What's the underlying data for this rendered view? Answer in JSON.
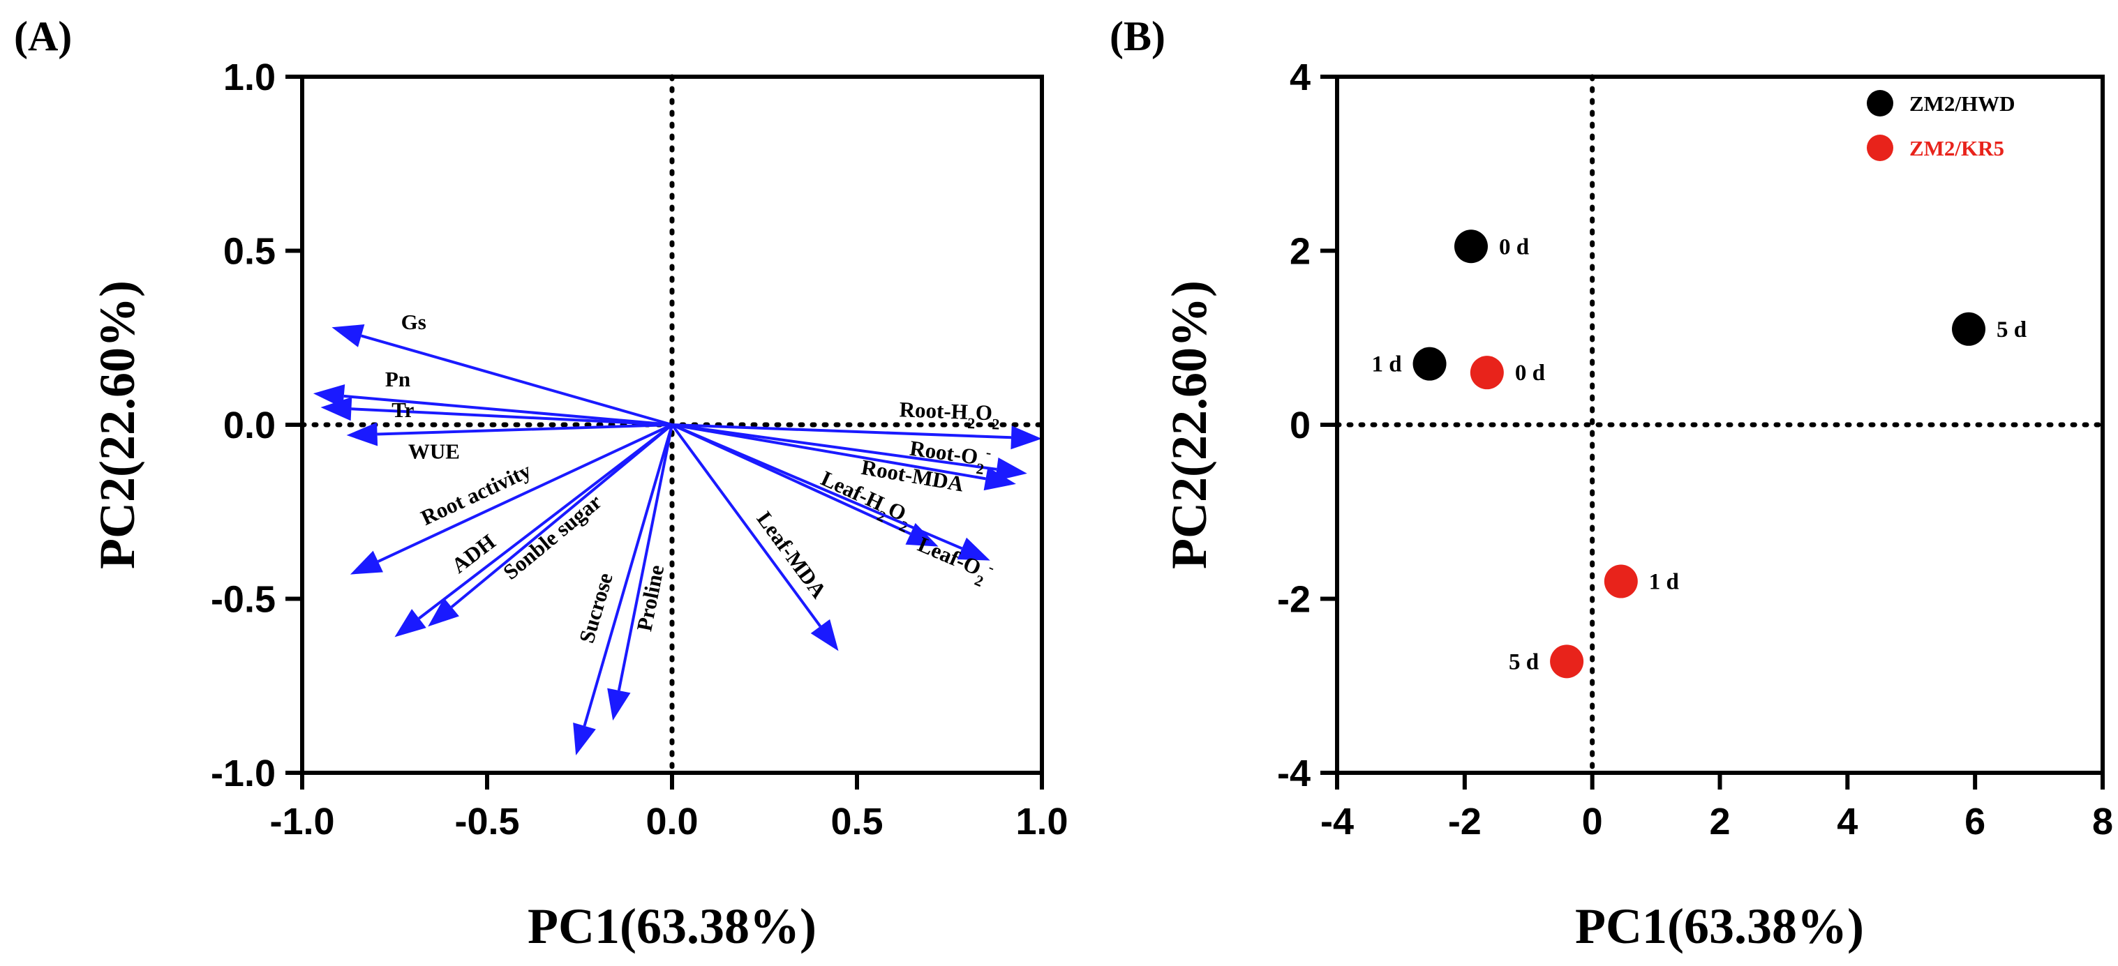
{
  "chart_data": [
    {
      "panel": "(A)",
      "type": "scatter",
      "subtype": "pca-loading-vectors",
      "xlabel": "PC1(63.38%)",
      "ylabel": "PC2(22.60%)",
      "xlim": [
        -1.0,
        1.0
      ],
      "ylim": [
        -1.0,
        1.0
      ],
      "xticks": [
        "-1.0",
        "-0.5",
        "0.0",
        "0.5",
        "1.0"
      ],
      "yticks": [
        "1.0",
        "0.5",
        "0.0",
        "-0.5",
        "-1.0"
      ],
      "xtick_values": [
        -1.0,
        -0.5,
        0.0,
        0.5,
        1.0
      ],
      "ytick_values": [
        1.0,
        0.5,
        0.0,
        -0.5,
        -1.0
      ],
      "reference_lines": "dotted lines at x = 0 and y = 0",
      "vectors": [
        {
          "label": "Gs",
          "x": -0.92,
          "y": 0.28
        },
        {
          "label": "Pn",
          "x": -0.97,
          "y": 0.09
        },
        {
          "label": "Tr",
          "x": -0.95,
          "y": 0.05
        },
        {
          "label": "WUE",
          "x": -0.88,
          "y": -0.03
        },
        {
          "label": "Root activity",
          "x": -0.87,
          "y": -0.43
        },
        {
          "label": "ADH",
          "x": -0.75,
          "y": -0.61
        },
        {
          "label": "Sonble sugar",
          "x": -0.66,
          "y": -0.58
        },
        {
          "label": "Sucrose",
          "x": -0.26,
          "y": -0.95
        },
        {
          "label": "Proline",
          "x": -0.16,
          "y": -0.85
        },
        {
          "label": "Leaf-MDA",
          "x": 0.45,
          "y": -0.65
        },
        {
          "label": "Leaf-H2O2",
          "x": 0.72,
          "y": -0.35
        },
        {
          "label": "Leaf-O2-",
          "x": 0.86,
          "y": -0.39
        },
        {
          "label": "Root-MDA",
          "x": 0.93,
          "y": -0.17
        },
        {
          "label": "Root-O2-",
          "x": 0.96,
          "y": -0.14
        },
        {
          "label": "Root-H2O2",
          "x": 1.0,
          "y": -0.04
        }
      ]
    },
    {
      "panel": "(B)",
      "type": "scatter",
      "xlabel": "PC1(63.38%)",
      "ylabel": "PC2(22.60%)",
      "xlim": [
        -4,
        8
      ],
      "ylim": [
        -4,
        4
      ],
      "xticks": [
        "-4",
        "-2",
        "0",
        "2",
        "4",
        "6",
        "8"
      ],
      "yticks": [
        "4",
        "2",
        "0",
        "-2",
        "-4"
      ],
      "xtick_values": [
        -4,
        -2,
        0,
        2,
        4,
        6,
        8
      ],
      "ytick_values": [
        4,
        2,
        0,
        -2,
        -4
      ],
      "reference_lines": "dotted lines at x = 0 and y = 0",
      "legend_position": "top-right",
      "series": [
        {
          "name": "ZM2/HWD",
          "color": "#000000",
          "points": [
            {
              "label": "0 d",
              "x": -1.9,
              "y": 2.05
            },
            {
              "label": "1 d",
              "x": -2.55,
              "y": 0.7
            },
            {
              "label": "5 d",
              "x": 5.9,
              "y": 1.1
            }
          ]
        },
        {
          "name": "ZM2/KR5",
          "color": "#e8231b",
          "points": [
            {
              "label": "0 d",
              "x": -1.65,
              "y": 0.6
            },
            {
              "label": "1 d",
              "x": 0.45,
              "y": -1.8
            },
            {
              "label": "5 d",
              "x": -0.4,
              "y": -2.72
            }
          ]
        }
      ]
    }
  ],
  "colors": {
    "arrow": "#1a1aff",
    "kr5": "#e8231b",
    "hwd": "#000000"
  }
}
